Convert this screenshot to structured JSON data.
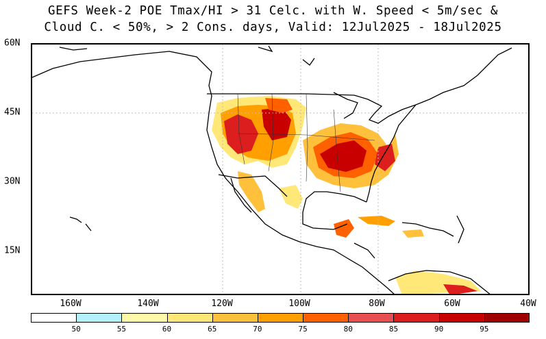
{
  "title": {
    "line1": "GEFS Week-2 POE Tmax/HI > 31 Celc. with W. Speed < 5m/sec &",
    "line2": "Cloud C. < 50%, > 2 Cons. days, Valid: 12Jul2025 - 18Jul2025"
  },
  "lat_labels": [
    "60N",
    "45N",
    "30N",
    "15N"
  ],
  "lon_labels": [
    "160W",
    "140W",
    "120W",
    "100W",
    "80W",
    "60W",
    "40W"
  ],
  "colorbar": {
    "labels": [
      "50",
      "55",
      "60",
      "65",
      "70",
      "75",
      "80",
      "85",
      "90",
      "95"
    ],
    "colors": [
      "#ffffff",
      "#b4f0fa",
      "#fffaaa",
      "#ffe878",
      "#ffc03c",
      "#ffa000",
      "#ff6000",
      "#e65050",
      "#dc1e1e",
      "#c80000",
      "#a00000"
    ]
  }
}
